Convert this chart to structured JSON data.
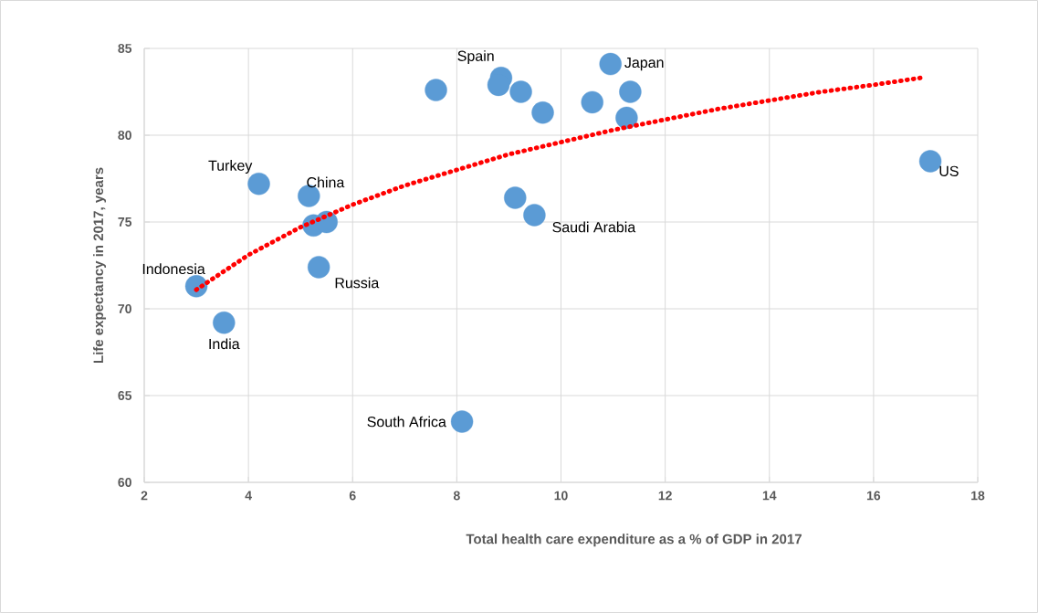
{
  "chart_data": {
    "type": "scatter",
    "xlabel": "Total health care expenditure as a % of GDP in 2017",
    "ylabel": "Life expectancy in 2017, years",
    "xlim": [
      2,
      18
    ],
    "xticks": [
      2,
      4,
      6,
      8,
      10,
      12,
      14,
      16,
      18
    ],
    "ylim": [
      60,
      85
    ],
    "yticks": [
      60,
      65,
      70,
      75,
      80,
      85
    ],
    "grid": true,
    "series": [
      {
        "type": "scatter",
        "color": "#5b9bd5",
        "marker": "circle",
        "x": [
          3.0,
          3.53,
          4.2,
          5.16,
          5.25,
          5.5,
          5.35,
          8.1,
          7.6,
          8.85,
          8.8,
          9.23,
          9.65,
          10.6,
          10.95,
          11.33,
          11.26,
          9.12,
          9.49,
          17.09
        ],
        "values": [
          71.3,
          69.2,
          77.2,
          76.5,
          74.8,
          75.0,
          72.4,
          63.5,
          82.6,
          83.3,
          82.9,
          82.5,
          81.3,
          81.9,
          84.1,
          82.5,
          81.0,
          76.4,
          75.4,
          78.5
        ]
      },
      {
        "type": "line",
        "color": "#ff0000",
        "marker": "none",
        "line_style": "dotted",
        "x": [
          3,
          4,
          5,
          6,
          7,
          8,
          9,
          10,
          11,
          12,
          13,
          14,
          15,
          16,
          16.9
        ],
        "values": [
          71.1,
          73.1,
          74.7,
          76.0,
          77.1,
          78.0,
          78.9,
          79.6,
          80.3,
          80.9,
          81.5,
          82.0,
          82.5,
          82.9,
          83.3
        ]
      }
    ],
    "annotations": [
      {
        "text": "Spain",
        "x": 8.85,
        "y": 83.3
      },
      {
        "text": "Japan",
        "x": 10.95,
        "y": 84.1
      },
      {
        "text": "Turkey",
        "x": 4.2,
        "y": 77.2
      },
      {
        "text": "China",
        "x": 5.16,
        "y": 76.5
      },
      {
        "text": "Saudi Arabia",
        "x": 9.49,
        "y": 75.4
      },
      {
        "text": "US",
        "x": 17.09,
        "y": 78.5
      },
      {
        "text": "Indonesia",
        "x": 3.0,
        "y": 71.3
      },
      {
        "text": "Russia",
        "x": 5.35,
        "y": 72.4
      },
      {
        "text": "India",
        "x": 3.53,
        "y": 69.2
      },
      {
        "text": "South Africa",
        "x": 8.1,
        "y": 63.5
      }
    ]
  }
}
